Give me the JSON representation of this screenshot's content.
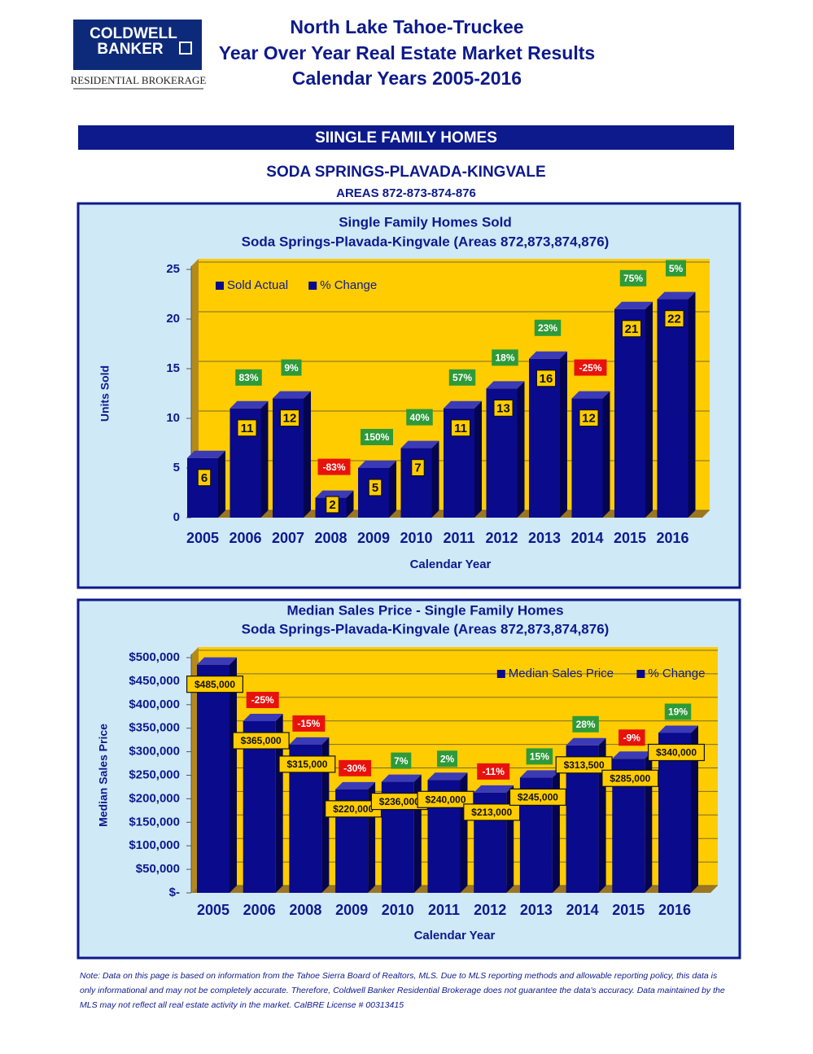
{
  "header": {
    "logo_line1": "COLDWELL",
    "logo_line2": "BANKER",
    "logo_sub": "RESIDENTIAL BROKERAGE",
    "title_lines": [
      "North Lake Tahoe-Truckee",
      "Year Over Year Real Estate Market Results",
      "Calendar Years 2005-2016"
    ]
  },
  "section": "SIINGLE FAMILY HOMES",
  "area_title": "SODA SPRINGS-PLAVADA-KINGVALE",
  "area_subtitle": "AREAS 872-873-874-876",
  "chart_data": [
    {
      "type": "bar",
      "title": "Single Family Homes Sold",
      "subtitle": "Soda Springs-Plavada-Kingvale (Areas 872,873,874,876)",
      "x_label": "Calendar Year",
      "y_label": "Units Sold",
      "categories": [
        "2005",
        "2006",
        "2007",
        "2008",
        "2009",
        "2010",
        "2011",
        "2012",
        "2013",
        "2014",
        "2015",
        "2016"
      ],
      "series": [
        {
          "name": "Sold Actual",
          "color": "#0a0a8c",
          "values": [
            6,
            11,
            12,
            2,
            5,
            7,
            11,
            13,
            16,
            12,
            21,
            22
          ]
        },
        {
          "name": "% Change",
          "color": "#0a0a8c",
          "values": [
            null,
            83,
            9,
            -83,
            150,
            40,
            57,
            18,
            23,
            -25,
            75,
            5
          ],
          "value_labels": [
            null,
            "83%",
            "9%",
            "-83%",
            "150%",
            "40%",
            "57%",
            "18%",
            "23%",
            "-25%",
            "75%",
            "5%"
          ]
        }
      ],
      "positive_color": "#2e9a3a",
      "negative_color": "#e8120c",
      "ylim": [
        0,
        25
      ],
      "yticks": [
        0,
        5,
        10,
        15,
        20,
        25
      ],
      "grid": true,
      "legend": "upper left"
    },
    {
      "type": "bar",
      "title": "Median Sales Price - Single Family Homes",
      "subtitle": "Soda Springs-Plavada-Kingvale (Areas 872,873,874,876)",
      "x_label": "Calendar Year",
      "y_label": "Median Sales Price",
      "categories": [
        "2005",
        "2006",
        "2008",
        "2009",
        "2010",
        "2011",
        "2012",
        "2013",
        "2014",
        "2015",
        "2016"
      ],
      "series": [
        {
          "name": "Median Sales Price",
          "color": "#0a0a8c",
          "values": [
            485000,
            365000,
            315000,
            220000,
            236000,
            240000,
            213000,
            245000,
            313500,
            285000,
            340000
          ],
          "value_labels": [
            "$485,000",
            "$365,000",
            "$315,000",
            "$220,000",
            "$236,000",
            "$240,000",
            "$213,000",
            "$245,000",
            "$313,500",
            "$285,000",
            "$340,000"
          ]
        },
        {
          "name": "% Change",
          "color": "#0a0a8c",
          "values": [
            null,
            -25,
            -15,
            -30,
            7,
            2,
            -11,
            15,
            28,
            -9,
            19
          ],
          "value_labels": [
            null,
            "-25%",
            "-15%",
            "-30%",
            "7%",
            "2%",
            "-11%",
            "15%",
            "28%",
            "-9%",
            "19%"
          ]
        }
      ],
      "positive_color": "#2e9a3a",
      "negative_color": "#e8120c",
      "ylim": [
        0,
        500000
      ],
      "yticks": [
        {
          "value": 0,
          "label": "$-"
        },
        {
          "value": 50000,
          "label": "$50,000"
        },
        {
          "value": 100000,
          "label": "$100,000"
        },
        {
          "value": 150000,
          "label": "$150,000"
        },
        {
          "value": 200000,
          "label": "$200,000"
        },
        {
          "value": 250000,
          "label": "$250,000"
        },
        {
          "value": 300000,
          "label": "$300,000"
        },
        {
          "value": 350000,
          "label": "$350,000"
        },
        {
          "value": 400000,
          "label": "$400,000"
        },
        {
          "value": 450000,
          "label": "$450,000"
        },
        {
          "value": 500000,
          "label": "$500,000"
        }
      ],
      "grid": true,
      "legend": "upper right"
    }
  ],
  "note": "Note: Data on this page is based on information from the Tahoe Sierra Board of Realtors, MLS.  Due to MLS reporting methods and allowable reporting policy, this data is only informational and may not be completely accurate.  Therefore, Coldwell Banker Residential Brokerage does not guarantee the data's accuracy.  Data maintained by the MLS may not reflect all real estate activity in the market.  CalBRE License # 00313415"
}
